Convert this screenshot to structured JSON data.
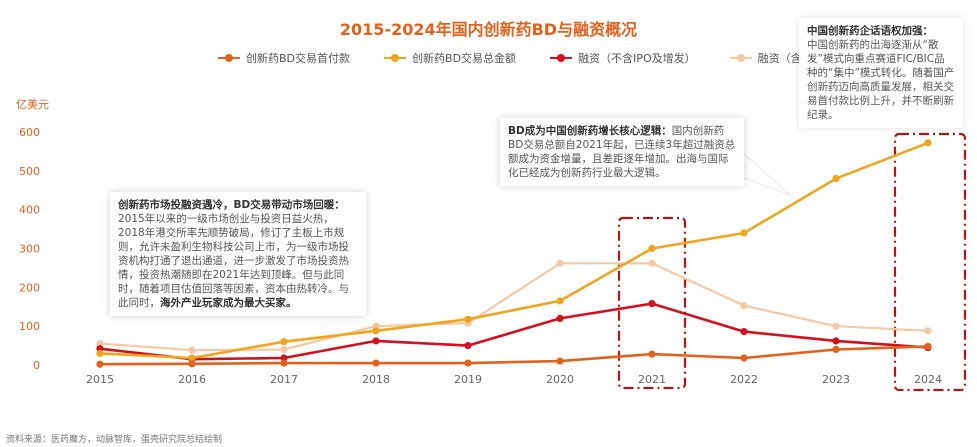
{
  "title": "2015-2024年国内创新药BD与融资概况",
  "unit_label": "亿美元",
  "source": "资料来源：医药魔方，动脉智库，蛋壳研究院总结绘制",
  "legend": [
    {
      "label": "创新药BD交易首付款",
      "color": "#e2611c"
    },
    {
      "label": "创新药BD交易总金额",
      "color": "#efa51e"
    },
    {
      "label": "融资（不含IPO及增发）",
      "color": "#d21020"
    },
    {
      "label": "融资（含IPO及增发）",
      "color": "#f5c9a6"
    }
  ],
  "notes": {
    "left_bold": "创新药市场投融资遇冷，BD交易带动市场回暖：",
    "left_body": "2015年以来的一级市场创业与投资日益火热，2018年港交所率先顺势破局，修订了主板上市规则，允许未盈利生物科技公司上市，为一级市场投资机构打通了退出通道，进一步激发了市场投资热情，投资热潮随即在2021年达到顶峰。但与此同时，随着项目估值回落等因素，资本由热转冷。与此同时，",
    "left_bold2": "海外产业玩家成为最大买家。",
    "mid_bold": "BD成为中国创新药增长核心逻辑：",
    "mid_body": "国内创新药BD交易总额自2021年起，已连续3年超过融资总额成为资金增量，且差距逐年增加。出海与国际化已经成为创新药行业最大逻辑。",
    "right_bold": "中国创新药企话语权加强：",
    "right_body": "中国创新药的出海逐渐从“散发”模式向重点赛道FIC/BIC品种的“集中”模式转化。随着国产创新药迈向高质量发展，相关交易首付款比例上升，并不断刷新纪录。"
  },
  "chart_data": {
    "type": "line",
    "title": "2015-2024年国内创新药BD与融资概况",
    "ylabel": "亿美元",
    "x": [
      "2015",
      "2016",
      "2017",
      "2018",
      "2019",
      "2020",
      "2021",
      "2022",
      "2023",
      "2024"
    ],
    "ylim": [
      0,
      600
    ],
    "yticks": [
      0,
      100,
      200,
      300,
      400,
      500,
      600
    ],
    "grid": false,
    "legend_position": "top",
    "series": [
      {
        "name": "创新药BD交易首付款",
        "color": "#e2611c",
        "values": [
          2,
          3,
          5,
          5,
          5,
          10,
          28,
          18,
          40,
          48
        ]
      },
      {
        "name": "创新药BD交易总金额",
        "color": "#efa51e",
        "values": [
          30,
          18,
          60,
          88,
          118,
          165,
          300,
          340,
          480,
          572
        ]
      },
      {
        "name": "融资（不含IPO及增发）",
        "color": "#d21020",
        "values": [
          42,
          15,
          18,
          62,
          50,
          120,
          158,
          86,
          62,
          45
        ]
      },
      {
        "name": "融资（含IPO及增发）",
        "color": "#f5c9a6",
        "values": [
          55,
          38,
          40,
          100,
          108,
          262,
          262,
          153,
          100,
          88
        ]
      }
    ],
    "highlight_years": [
      "2021",
      "2024"
    ]
  }
}
